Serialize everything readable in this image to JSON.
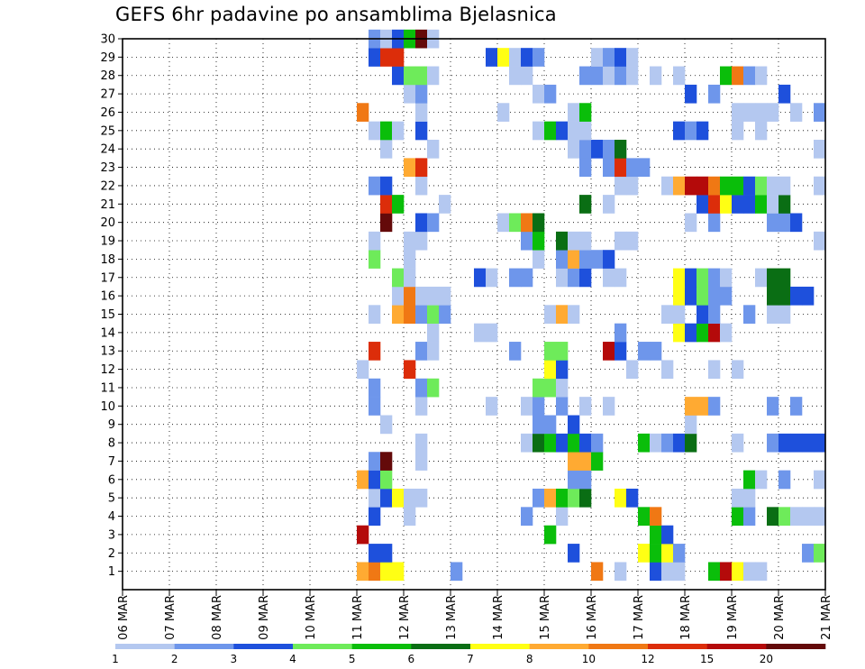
{
  "chart_data": {
    "type": "heatmap",
    "title": "GEFS 6hr padavine po ansamblima Bjelasnica",
    "xlabel": "",
    "ylabel": "",
    "x_tick_labels": [
      "06 MAR",
      "07 MAR",
      "08 MAR",
      "09 MAR",
      "10 MAR",
      "11 MAR",
      "12 MAR",
      "13 MAR",
      "14 MAR",
      "15 MAR",
      "16 MAR",
      "17 MAR",
      "18 MAR",
      "19 MAR",
      "20 MAR",
      "21 MAR"
    ],
    "y_tick_labels": [
      "1",
      "2",
      "3",
      "4",
      "5",
      "6",
      "7",
      "8",
      "9",
      "10",
      "11",
      "12",
      "13",
      "14",
      "15",
      "16",
      "17",
      "18",
      "19",
      "20",
      "21",
      "22",
      "23",
      "24",
      "25",
      "26",
      "27",
      "28",
      "29",
      "30"
    ],
    "x_range_days": [
      0,
      15
    ],
    "y_range": [
      0,
      30
    ],
    "steps_per_day": 4,
    "grid": true,
    "legend_placement": "bottom",
    "legend": {
      "boundary_labels": [
        "1",
        "2",
        "3",
        "4",
        "5",
        "6",
        "7",
        "8",
        "10",
        "12",
        "15",
        "20"
      ],
      "colors": [
        "#b4c8f0",
        "#6e96eb",
        "#1e50dc",
        "#6eeb5a",
        "#0abe0a",
        "#0a6e14",
        "#ffff14",
        "#ffaa32",
        "#f07814",
        "#dc2d0a",
        "#b40a0a",
        "#640a0a"
      ]
    },
    "cells": [
      [
        1,
        20,
        7
      ],
      [
        1,
        21,
        8
      ],
      [
        1,
        22,
        6
      ],
      [
        1,
        23,
        6
      ],
      [
        1,
        28,
        1
      ],
      [
        1,
        40,
        8
      ],
      [
        1,
        42,
        0
      ],
      [
        1,
        45,
        2
      ],
      [
        1,
        46,
        0
      ],
      [
        1,
        47,
        0
      ],
      [
        1,
        50,
        4
      ],
      [
        1,
        51,
        10
      ],
      [
        1,
        52,
        6
      ],
      [
        1,
        53,
        0
      ],
      [
        1,
        54,
        0
      ],
      [
        2,
        21,
        2
      ],
      [
        2,
        22,
        2
      ],
      [
        2,
        38,
        2
      ],
      [
        2,
        44,
        6
      ],
      [
        2,
        45,
        4
      ],
      [
        2,
        46,
        6
      ],
      [
        2,
        47,
        1
      ],
      [
        2,
        58,
        1
      ],
      [
        2,
        59,
        3
      ],
      [
        3,
        20,
        10
      ],
      [
        3,
        36,
        4
      ],
      [
        3,
        45,
        4
      ],
      [
        3,
        46,
        2
      ],
      [
        4,
        21,
        2
      ],
      [
        4,
        24,
        0
      ],
      [
        4,
        34,
        1
      ],
      [
        4,
        37,
        0
      ],
      [
        4,
        44,
        4
      ],
      [
        4,
        45,
        8
      ],
      [
        4,
        52,
        4
      ],
      [
        4,
        53,
        1
      ],
      [
        4,
        55,
        5
      ],
      [
        4,
        56,
        3
      ],
      [
        4,
        57,
        0
      ],
      [
        4,
        58,
        0
      ],
      [
        4,
        59,
        0
      ],
      [
        5,
        21,
        0
      ],
      [
        5,
        22,
        2
      ],
      [
        5,
        23,
        6
      ],
      [
        5,
        24,
        0
      ],
      [
        5,
        25,
        0
      ],
      [
        5,
        35,
        1
      ],
      [
        5,
        36,
        7
      ],
      [
        5,
        37,
        4
      ],
      [
        5,
        38,
        3
      ],
      [
        5,
        39,
        5
      ],
      [
        5,
        42,
        6
      ],
      [
        5,
        43,
        2
      ],
      [
        5,
        52,
        0
      ],
      [
        5,
        53,
        0
      ],
      [
        6,
        20,
        7
      ],
      [
        6,
        21,
        2
      ],
      [
        6,
        22,
        3
      ],
      [
        6,
        38,
        1
      ],
      [
        6,
        39,
        1
      ],
      [
        6,
        53,
        4
      ],
      [
        6,
        54,
        0
      ],
      [
        6,
        56,
        1
      ],
      [
        6,
        59,
        0
      ],
      [
        7,
        21,
        1
      ],
      [
        7,
        22,
        11
      ],
      [
        7,
        25,
        0
      ],
      [
        7,
        38,
        7
      ],
      [
        7,
        39,
        7
      ],
      [
        7,
        40,
        4
      ],
      [
        8,
        25,
        0
      ],
      [
        8,
        34,
        0
      ],
      [
        8,
        35,
        5
      ],
      [
        8,
        36,
        4
      ],
      [
        8,
        37,
        2
      ],
      [
        8,
        38,
        4
      ],
      [
        8,
        39,
        2
      ],
      [
        8,
        40,
        1
      ],
      [
        8,
        44,
        4
      ],
      [
        8,
        45,
        0
      ],
      [
        8,
        46,
        1
      ],
      [
        8,
        47,
        2
      ],
      [
        8,
        48,
        5
      ],
      [
        8,
        52,
        0
      ],
      [
        8,
        55,
        1
      ],
      [
        8,
        56,
        2
      ],
      [
        8,
        57,
        2
      ],
      [
        8,
        58,
        2
      ],
      [
        8,
        59,
        2
      ],
      [
        9,
        22,
        0
      ],
      [
        9,
        35,
        1
      ],
      [
        9,
        36,
        1
      ],
      [
        9,
        38,
        2
      ],
      [
        9,
        48,
        0
      ],
      [
        10,
        21,
        1
      ],
      [
        10,
        25,
        0
      ],
      [
        10,
        31,
        0
      ],
      [
        10,
        34,
        0
      ],
      [
        10,
        35,
        1
      ],
      [
        10,
        37,
        1
      ],
      [
        10,
        39,
        0
      ],
      [
        10,
        41,
        0
      ],
      [
        10,
        48,
        7
      ],
      [
        10,
        49,
        7
      ],
      [
        10,
        50,
        1
      ],
      [
        10,
        55,
        1
      ],
      [
        10,
        57,
        1
      ],
      [
        11,
        21,
        1
      ],
      [
        11,
        25,
        1
      ],
      [
        11,
        26,
        3
      ],
      [
        11,
        35,
        3
      ],
      [
        11,
        36,
        3
      ],
      [
        11,
        37,
        0
      ],
      [
        12,
        20,
        0
      ],
      [
        12,
        24,
        9
      ],
      [
        12,
        36,
        6
      ],
      [
        12,
        37,
        2
      ],
      [
        12,
        43,
        0
      ],
      [
        12,
        46,
        0
      ],
      [
        12,
        50,
        0
      ],
      [
        12,
        52,
        0
      ],
      [
        13,
        21,
        9
      ],
      [
        13,
        25,
        1
      ],
      [
        13,
        26,
        0
      ],
      [
        13,
        33,
        1
      ],
      [
        13,
        36,
        3
      ],
      [
        13,
        37,
        3
      ],
      [
        13,
        41,
        10
      ],
      [
        13,
        42,
        2
      ],
      [
        13,
        44,
        1
      ],
      [
        13,
        45,
        1
      ],
      [
        14,
        26,
        0
      ],
      [
        14,
        30,
        0
      ],
      [
        14,
        31,
        0
      ],
      [
        14,
        42,
        1
      ],
      [
        14,
        47,
        6
      ],
      [
        14,
        48,
        2
      ],
      [
        14,
        49,
        4
      ],
      [
        14,
        50,
        10
      ],
      [
        14,
        51,
        0
      ],
      [
        15,
        21,
        0
      ],
      [
        15,
        23,
        7
      ],
      [
        15,
        24,
        8
      ],
      [
        15,
        25,
        1
      ],
      [
        15,
        26,
        3
      ],
      [
        15,
        27,
        1
      ],
      [
        15,
        36,
        0
      ],
      [
        15,
        37,
        7
      ],
      [
        15,
        38,
        0
      ],
      [
        15,
        46,
        0
      ],
      [
        15,
        47,
        0
      ],
      [
        15,
        49,
        2
      ],
      [
        15,
        50,
        1
      ],
      [
        15,
        53,
        1
      ],
      [
        15,
        55,
        0
      ],
      [
        15,
        56,
        0
      ],
      [
        16,
        23,
        0
      ],
      [
        16,
        24,
        8
      ],
      [
        16,
        25,
        0
      ],
      [
        16,
        26,
        0
      ],
      [
        16,
        27,
        0
      ],
      [
        16,
        47,
        6
      ],
      [
        16,
        48,
        2
      ],
      [
        16,
        49,
        3
      ],
      [
        16,
        50,
        1
      ],
      [
        16,
        51,
        1
      ],
      [
        16,
        55,
        5
      ],
      [
        16,
        56,
        5
      ],
      [
        16,
        57,
        2
      ],
      [
        16,
        58,
        2
      ],
      [
        17,
        23,
        3
      ],
      [
        17,
        24,
        0
      ],
      [
        17,
        30,
        2
      ],
      [
        17,
        31,
        0
      ],
      [
        17,
        33,
        1
      ],
      [
        17,
        34,
        1
      ],
      [
        17,
        37,
        0
      ],
      [
        17,
        38,
        1
      ],
      [
        17,
        39,
        2
      ],
      [
        17,
        41,
        0
      ],
      [
        17,
        42,
        0
      ],
      [
        17,
        47,
        6
      ],
      [
        17,
        48,
        2
      ],
      [
        17,
        49,
        3
      ],
      [
        17,
        50,
        1
      ],
      [
        17,
        51,
        0
      ],
      [
        17,
        54,
        0
      ],
      [
        17,
        55,
        5
      ],
      [
        17,
        56,
        5
      ],
      [
        18,
        21,
        3
      ],
      [
        18,
        24,
        0
      ],
      [
        18,
        35,
        0
      ],
      [
        18,
        37,
        1
      ],
      [
        18,
        38,
        7
      ],
      [
        18,
        39,
        1
      ],
      [
        18,
        40,
        1
      ],
      [
        18,
        41,
        2
      ],
      [
        19,
        21,
        0
      ],
      [
        19,
        24,
        0
      ],
      [
        19,
        25,
        0
      ],
      [
        19,
        34,
        1
      ],
      [
        19,
        35,
        4
      ],
      [
        19,
        37,
        5
      ],
      [
        19,
        38,
        0
      ],
      [
        19,
        39,
        0
      ],
      [
        19,
        42,
        0
      ],
      [
        19,
        43,
        0
      ],
      [
        19,
        59,
        0
      ],
      [
        20,
        22,
        11
      ],
      [
        20,
        25,
        2
      ],
      [
        20,
        26,
        1
      ],
      [
        20,
        32,
        0
      ],
      [
        20,
        33,
        3
      ],
      [
        20,
        34,
        8
      ],
      [
        20,
        35,
        5
      ],
      [
        20,
        48,
        0
      ],
      [
        20,
        50,
        1
      ],
      [
        20,
        55,
        1
      ],
      [
        20,
        56,
        1
      ],
      [
        20,
        57,
        2
      ],
      [
        21,
        22,
        9
      ],
      [
        21,
        23,
        4
      ],
      [
        21,
        27,
        0
      ],
      [
        21,
        39,
        5
      ],
      [
        21,
        41,
        0
      ],
      [
        21,
        49,
        2
      ],
      [
        21,
        50,
        9
      ],
      [
        21,
        51,
        6
      ],
      [
        21,
        52,
        2
      ],
      [
        21,
        53,
        2
      ],
      [
        21,
        54,
        4
      ],
      [
        21,
        55,
        0
      ],
      [
        21,
        56,
        5
      ],
      [
        22,
        21,
        1
      ],
      [
        22,
        22,
        2
      ],
      [
        22,
        25,
        0
      ],
      [
        22,
        42,
        0
      ],
      [
        22,
        43,
        0
      ],
      [
        22,
        46,
        0
      ],
      [
        22,
        47,
        7
      ],
      [
        22,
        48,
        10
      ],
      [
        22,
        49,
        10
      ],
      [
        22,
        50,
        8
      ],
      [
        22,
        51,
        4
      ],
      [
        22,
        52,
        4
      ],
      [
        22,
        53,
        2
      ],
      [
        22,
        54,
        3
      ],
      [
        22,
        55,
        0
      ],
      [
        22,
        56,
        0
      ],
      [
        22,
        59,
        0
      ],
      [
        23,
        24,
        7
      ],
      [
        23,
        25,
        9
      ],
      [
        23,
        39,
        1
      ],
      [
        23,
        41,
        1
      ],
      [
        23,
        42,
        9
      ],
      [
        23,
        43,
        1
      ],
      [
        23,
        44,
        1
      ],
      [
        24,
        22,
        0
      ],
      [
        24,
        26,
        0
      ],
      [
        24,
        38,
        0
      ],
      [
        24,
        39,
        1
      ],
      [
        24,
        40,
        2
      ],
      [
        24,
        41,
        1
      ],
      [
        24,
        42,
        5
      ],
      [
        24,
        59,
        0
      ],
      [
        25,
        21,
        0
      ],
      [
        25,
        22,
        4
      ],
      [
        25,
        23,
        0
      ],
      [
        25,
        25,
        2
      ],
      [
        25,
        35,
        0
      ],
      [
        25,
        36,
        4
      ],
      [
        25,
        37,
        2
      ],
      [
        25,
        38,
        0
      ],
      [
        25,
        39,
        0
      ],
      [
        25,
        47,
        2
      ],
      [
        25,
        48,
        1
      ],
      [
        25,
        49,
        2
      ],
      [
        25,
        52,
        0
      ],
      [
        25,
        54,
        0
      ],
      [
        26,
        20,
        8
      ],
      [
        26,
        25,
        0
      ],
      [
        26,
        32,
        0
      ],
      [
        26,
        38,
        0
      ],
      [
        26,
        39,
        4
      ],
      [
        26,
        52,
        0
      ],
      [
        26,
        53,
        0
      ],
      [
        26,
        54,
        0
      ],
      [
        26,
        55,
        0
      ],
      [
        26,
        57,
        0
      ],
      [
        26,
        59,
        1
      ],
      [
        27,
        24,
        0
      ],
      [
        27,
        25,
        1
      ],
      [
        27,
        35,
        0
      ],
      [
        27,
        36,
        1
      ],
      [
        27,
        48,
        2
      ],
      [
        27,
        50,
        1
      ],
      [
        27,
        56,
        2
      ],
      [
        28,
        23,
        2
      ],
      [
        28,
        24,
        3
      ],
      [
        28,
        25,
        3
      ],
      [
        28,
        26,
        0
      ],
      [
        28,
        33,
        0
      ],
      [
        28,
        34,
        0
      ],
      [
        28,
        39,
        1
      ],
      [
        28,
        40,
        1
      ],
      [
        28,
        41,
        0
      ],
      [
        28,
        42,
        1
      ],
      [
        28,
        43,
        0
      ],
      [
        28,
        45,
        0
      ],
      [
        28,
        47,
        0
      ],
      [
        28,
        51,
        4
      ],
      [
        28,
        52,
        8
      ],
      [
        28,
        53,
        1
      ],
      [
        28,
        54,
        0
      ],
      [
        29,
        21,
        2
      ],
      [
        29,
        22,
        9
      ],
      [
        29,
        23,
        9
      ],
      [
        29,
        31,
        2
      ],
      [
        29,
        32,
        6
      ],
      [
        29,
        33,
        0
      ],
      [
        29,
        34,
        2
      ],
      [
        29,
        35,
        1
      ],
      [
        29,
        40,
        0
      ],
      [
        29,
        41,
        1
      ],
      [
        29,
        42,
        2
      ],
      [
        29,
        43,
        0
      ],
      [
        30,
        21,
        1
      ],
      [
        30,
        22,
        0
      ],
      [
        30,
        23,
        2
      ],
      [
        30,
        24,
        4
      ],
      [
        30,
        25,
        11
      ],
      [
        30,
        26,
        0
      ]
    ]
  }
}
